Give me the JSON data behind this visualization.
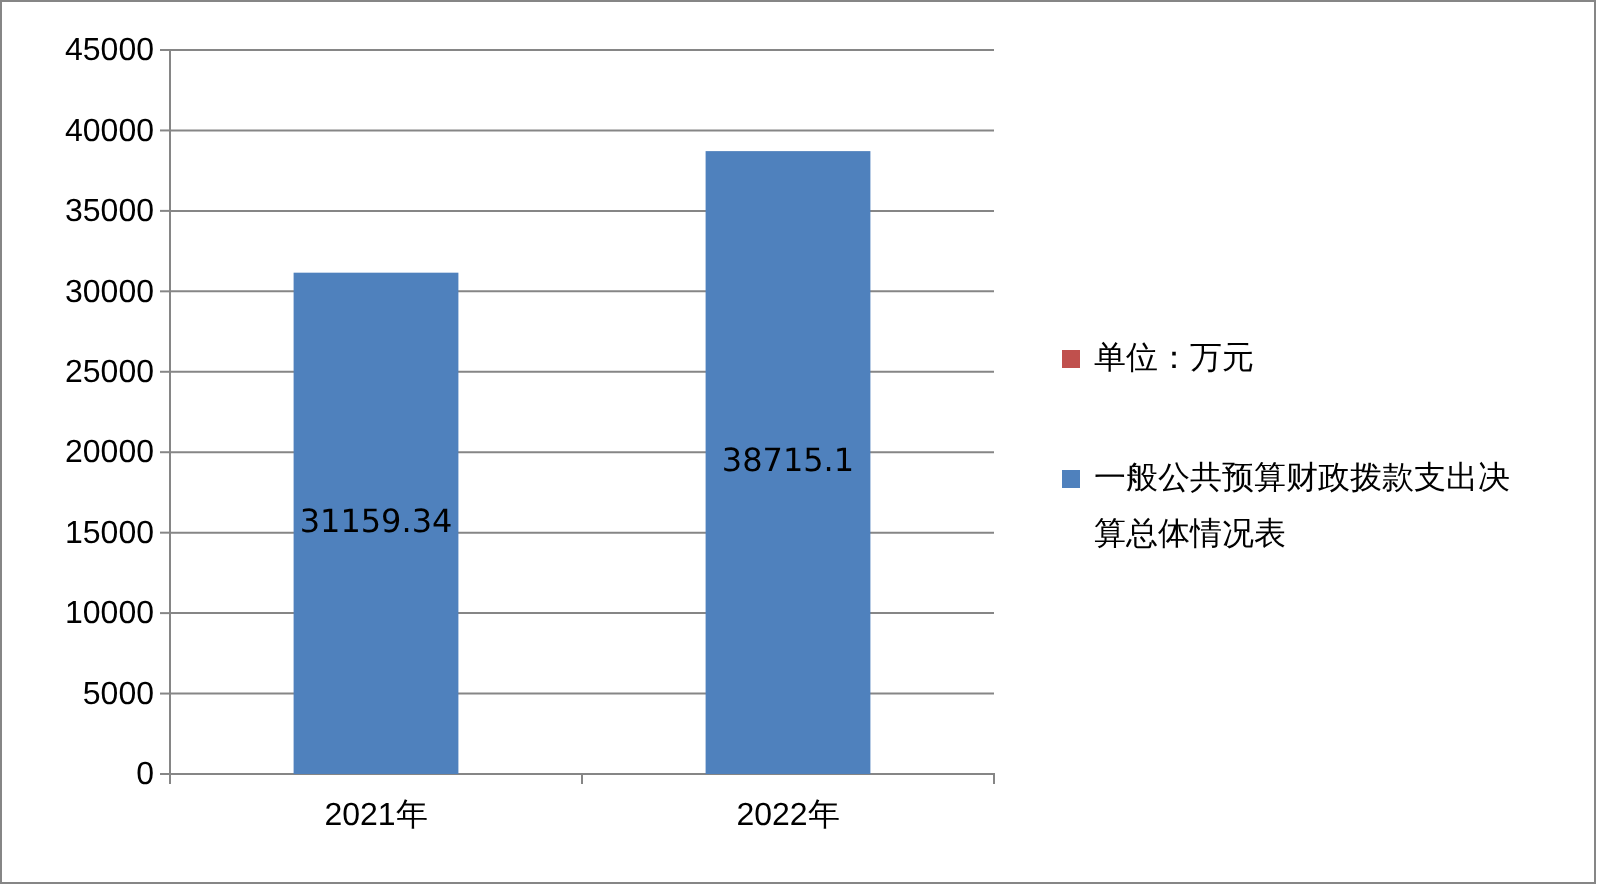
{
  "chart_data": {
    "type": "bar",
    "categories": [
      "2021年",
      "2022年"
    ],
    "series": [
      {
        "name": "单位：万元",
        "color": "#c0504d",
        "values": [
          null,
          null
        ]
      },
      {
        "name": "一般公共预算财政拨款支出决算总体情况表",
        "color": "#4f81bd",
        "values": [
          31159.34,
          38715.1
        ]
      }
    ],
    "ylim": [
      0,
      45000
    ],
    "yticks": [
      0,
      5000,
      10000,
      15000,
      20000,
      25000,
      30000,
      35000,
      40000,
      45000
    ],
    "grid": "y",
    "legend": "right",
    "data_labels": true
  }
}
